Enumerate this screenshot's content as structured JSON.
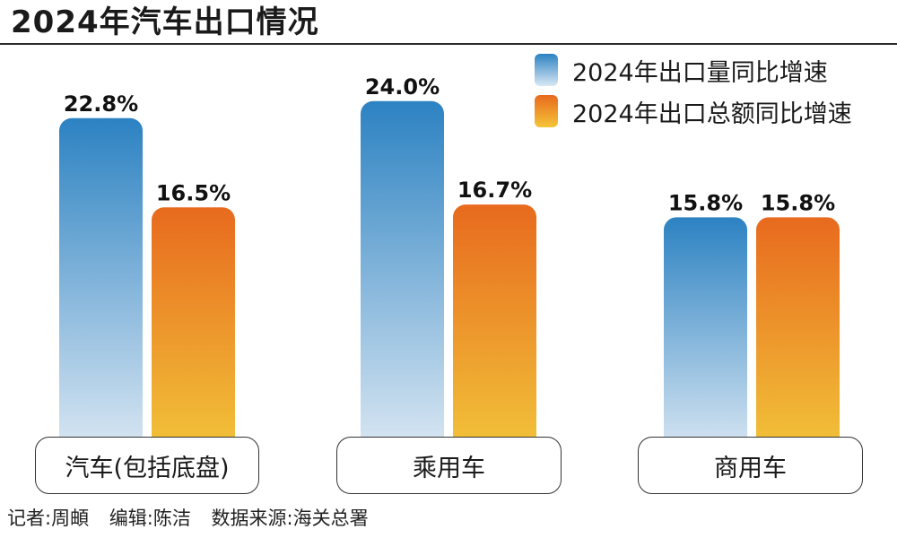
{
  "chart_data": {
    "type": "bar",
    "title": "2024年汽车出口情况",
    "categories": [
      "汽车(包括底盘)",
      "乘用车",
      "商用车"
    ],
    "series": [
      {
        "name": "2024年出口量同比增速",
        "values": [
          22.8,
          24.0,
          15.8
        ],
        "value_labels": [
          "22.8%",
          "24.0%",
          "15.8%"
        ],
        "color_top": "#2c82c2",
        "color_bottom": "#dde9f4"
      },
      {
        "name": "2024年出口总额同比增速",
        "values": [
          16.5,
          16.7,
          15.8
        ],
        "value_labels": [
          "16.5%",
          "16.7%",
          "15.8%"
        ],
        "color_top": "#e86a1e",
        "color_bottom": "#f2c63a"
      }
    ],
    "ylim": [
      0,
      28
    ],
    "xlabel": "",
    "ylabel": "",
    "legend": "top-right",
    "grid": false
  },
  "footer": {
    "reporter": "记者:周頔",
    "editor": "编辑:陈洁",
    "source": "数据来源:海关总署"
  }
}
